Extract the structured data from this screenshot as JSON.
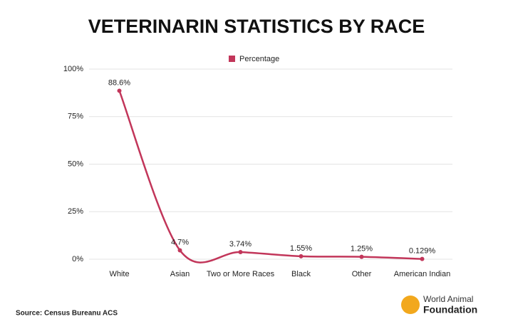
{
  "chart_data": {
    "type": "line",
    "title": "VETERINARIN STATISTICS BY RACE",
    "categories": [
      "White",
      "Asian",
      "Two or More Races",
      "Black",
      "Other",
      "American Indian"
    ],
    "series": [
      {
        "name": "Percentage",
        "color": "#c2365a",
        "values": [
          88.6,
          4.7,
          3.74,
          1.55,
          1.25,
          0.129
        ],
        "value_labels": [
          "88.6%",
          "4.7%",
          "3.74%",
          "1.55%",
          "1.25%",
          "0.129%"
        ]
      }
    ],
    "ylim": [
      0,
      100
    ],
    "yticks": [
      {
        "value": 0,
        "label": "0%"
      },
      {
        "value": 25,
        "label": "25%"
      },
      {
        "value": 50,
        "label": "50%"
      },
      {
        "value": 75,
        "label": "75%"
      },
      {
        "value": 100,
        "label": "100%"
      }
    ],
    "grid": true,
    "legend": "top",
    "source": "Source: Census Bureanu ACS",
    "brand": [
      "World Animal",
      "Foundation"
    ]
  }
}
